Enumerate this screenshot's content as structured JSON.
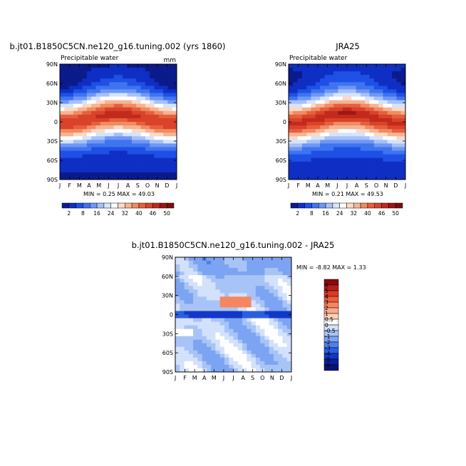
{
  "panels": [
    {
      "title": "b.jt01.B1850C5CN.ne120_g16.tuning.002 (yrs 1860)",
      "subtitle": "Precipitable water",
      "units": "mm",
      "min_max": "MIN =    0.25 MAX =   49.03"
    },
    {
      "title": "JRA25",
      "subtitle": "Precipitable water",
      "units": "",
      "min_max": "MIN =    0.21 MAX =   49.53"
    },
    {
      "title": "b.jt01.B1850C5CN.ne120_g16.tuning.002 - JRA25",
      "subtitle": "",
      "units": "",
      "min_max": "MIN =  -8.82 MAX =    1.33"
    }
  ],
  "chart_data": [
    {
      "type": "heatmap",
      "title": "b.jt01.B1850C5CN.ne120_g16.tuning.002 (yrs 1860)",
      "subtitle": "Precipitable water",
      "units": "mm",
      "x_ticks": [
        "J",
        "F",
        "M",
        "A",
        "M",
        "J",
        "J",
        "A",
        "S",
        "O",
        "N",
        "D",
        "J"
      ],
      "y_ticks": [
        "90N",
        "60N",
        "30N",
        "0",
        "30S",
        "60S",
        "90S"
      ],
      "min": 0.25,
      "max": 49.03,
      "colorbar_labels": [
        "2",
        "8",
        "16",
        "24",
        "32",
        "40",
        "46",
        "50"
      ],
      "colors": [
        "#0a1b8c",
        "#0f2fc4",
        "#1e50e6",
        "#3f74f0",
        "#6e97f5",
        "#a6c1f8",
        "#d5e4fb",
        "#ffffff",
        "#fbd9c5",
        "#f7b393",
        "#f18b62",
        "#e6603e",
        "#d8432a",
        "#c22a1c",
        "#a01515",
        "#7a0f0f"
      ]
    },
    {
      "type": "heatmap",
      "title": "JRA25",
      "subtitle": "Precipitable water",
      "x_ticks": [
        "J",
        "F",
        "M",
        "A",
        "M",
        "J",
        "J",
        "A",
        "S",
        "O",
        "N",
        "D",
        "J"
      ],
      "y_ticks": [
        "90N",
        "60N",
        "30N",
        "0",
        "30S",
        "60S",
        "90S"
      ],
      "min": 0.21,
      "max": 49.53,
      "colorbar_labels": [
        "2",
        "8",
        "16",
        "24",
        "32",
        "40",
        "46",
        "50"
      ]
    },
    {
      "type": "heatmap",
      "title": "b.jt01.B1850C5CN.ne120_g16.tuning.002 - JRA25",
      "x_ticks": [
        "J",
        "F",
        "M",
        "A",
        "M",
        "J",
        "J",
        "A",
        "S",
        "O",
        "N",
        "D",
        "J"
      ],
      "y_ticks": [
        "90N",
        "60N",
        "30N",
        "0",
        "30S",
        "60S",
        "90S"
      ],
      "min": -8.82,
      "max": 1.33,
      "colorbar_labels": [
        "6",
        "5",
        "4",
        "3",
        "2",
        "1",
        "0.5",
        "0",
        "-0.5",
        "-1",
        "-2",
        "-3",
        "-4",
        "-5",
        "-6"
      ],
      "colors": [
        "#8a0a0a",
        "#b81c1c",
        "#d93b26",
        "#ef5e3a",
        "#f7865f",
        "#f9ab8c",
        "#fcd0b8",
        "#ffffff",
        "#d3e1fb",
        "#a8c4f7",
        "#7ca4f2",
        "#4f80ec",
        "#2a5fe4",
        "#1238c8",
        "#0c1f9a",
        "#081573"
      ]
    }
  ]
}
